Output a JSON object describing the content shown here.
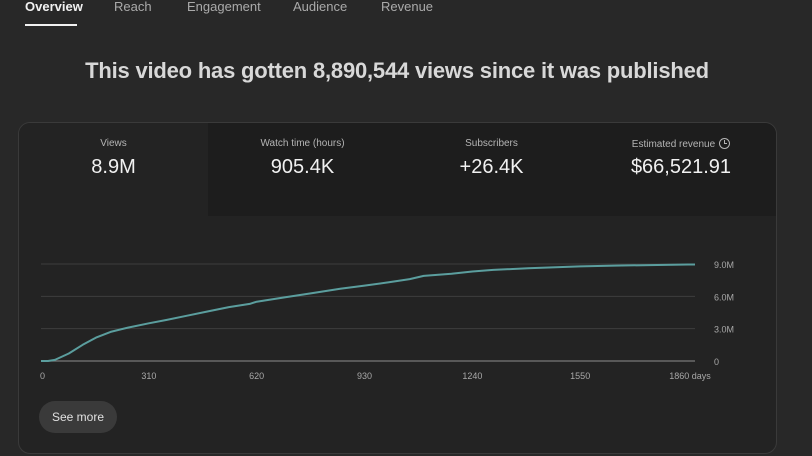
{
  "tabs": [
    {
      "label": "Overview",
      "active": true
    },
    {
      "label": "Reach",
      "active": false
    },
    {
      "label": "Engagement",
      "active": false
    },
    {
      "label": "Audience",
      "active": false
    },
    {
      "label": "Revenue",
      "active": false
    }
  ],
  "headline": "This video has gotten 8,890,544 views since it was published",
  "metrics": [
    {
      "label": "Views",
      "value": "8.9M",
      "selected": true
    },
    {
      "label": "Watch time (hours)",
      "value": "905.4K",
      "selected": false
    },
    {
      "label": "Subscribers",
      "value": "+26.4K",
      "selected": false
    },
    {
      "label": "Estimated revenue",
      "value": "$66,521.91",
      "selected": false,
      "icon": "clock-icon"
    }
  ],
  "see_more_label": "See more",
  "colors": {
    "line": "#5b9e9e",
    "grid": "#3e3e3e",
    "axis": "#777777",
    "tick_text": "#a8a8a8"
  },
  "chart_data": {
    "type": "line",
    "series": [
      {
        "x": [
          0,
          20,
          40,
          80,
          120,
          160,
          200,
          250,
          310,
          360,
          420,
          480,
          540,
          600,
          620,
          700,
          780,
          860,
          930,
          1000,
          1060,
          1100,
          1180,
          1240,
          1300,
          1400,
          1500,
          1550,
          1650,
          1750,
          1860,
          1880
        ],
        "values": [
          0,
          0,
          0.1,
          0.7,
          1.5,
          2.2,
          2.7,
          3.1,
          3.5,
          3.8,
          4.2,
          4.6,
          5.0,
          5.3,
          5.5,
          5.9,
          6.3,
          6.7,
          7.0,
          7.3,
          7.6,
          7.9,
          8.1,
          8.3,
          8.45,
          8.6,
          8.72,
          8.78,
          8.85,
          8.9,
          8.95,
          8.95
        ]
      }
    ],
    "x_ticks": [
      "0",
      "310",
      "620",
      "930",
      "1240",
      "1550",
      "1860 days"
    ],
    "x_tick_values": [
      0,
      310,
      620,
      930,
      1240,
      1550,
      1860
    ],
    "y_ticks": [
      "0",
      "3.0M",
      "6.0M",
      "9.0M"
    ],
    "y_tick_values": [
      0,
      3,
      6,
      9
    ],
    "xlim": [
      0,
      1880
    ],
    "ylim": [
      0,
      9
    ],
    "xlabel": "",
    "ylabel": "",
    "grid": true
  }
}
